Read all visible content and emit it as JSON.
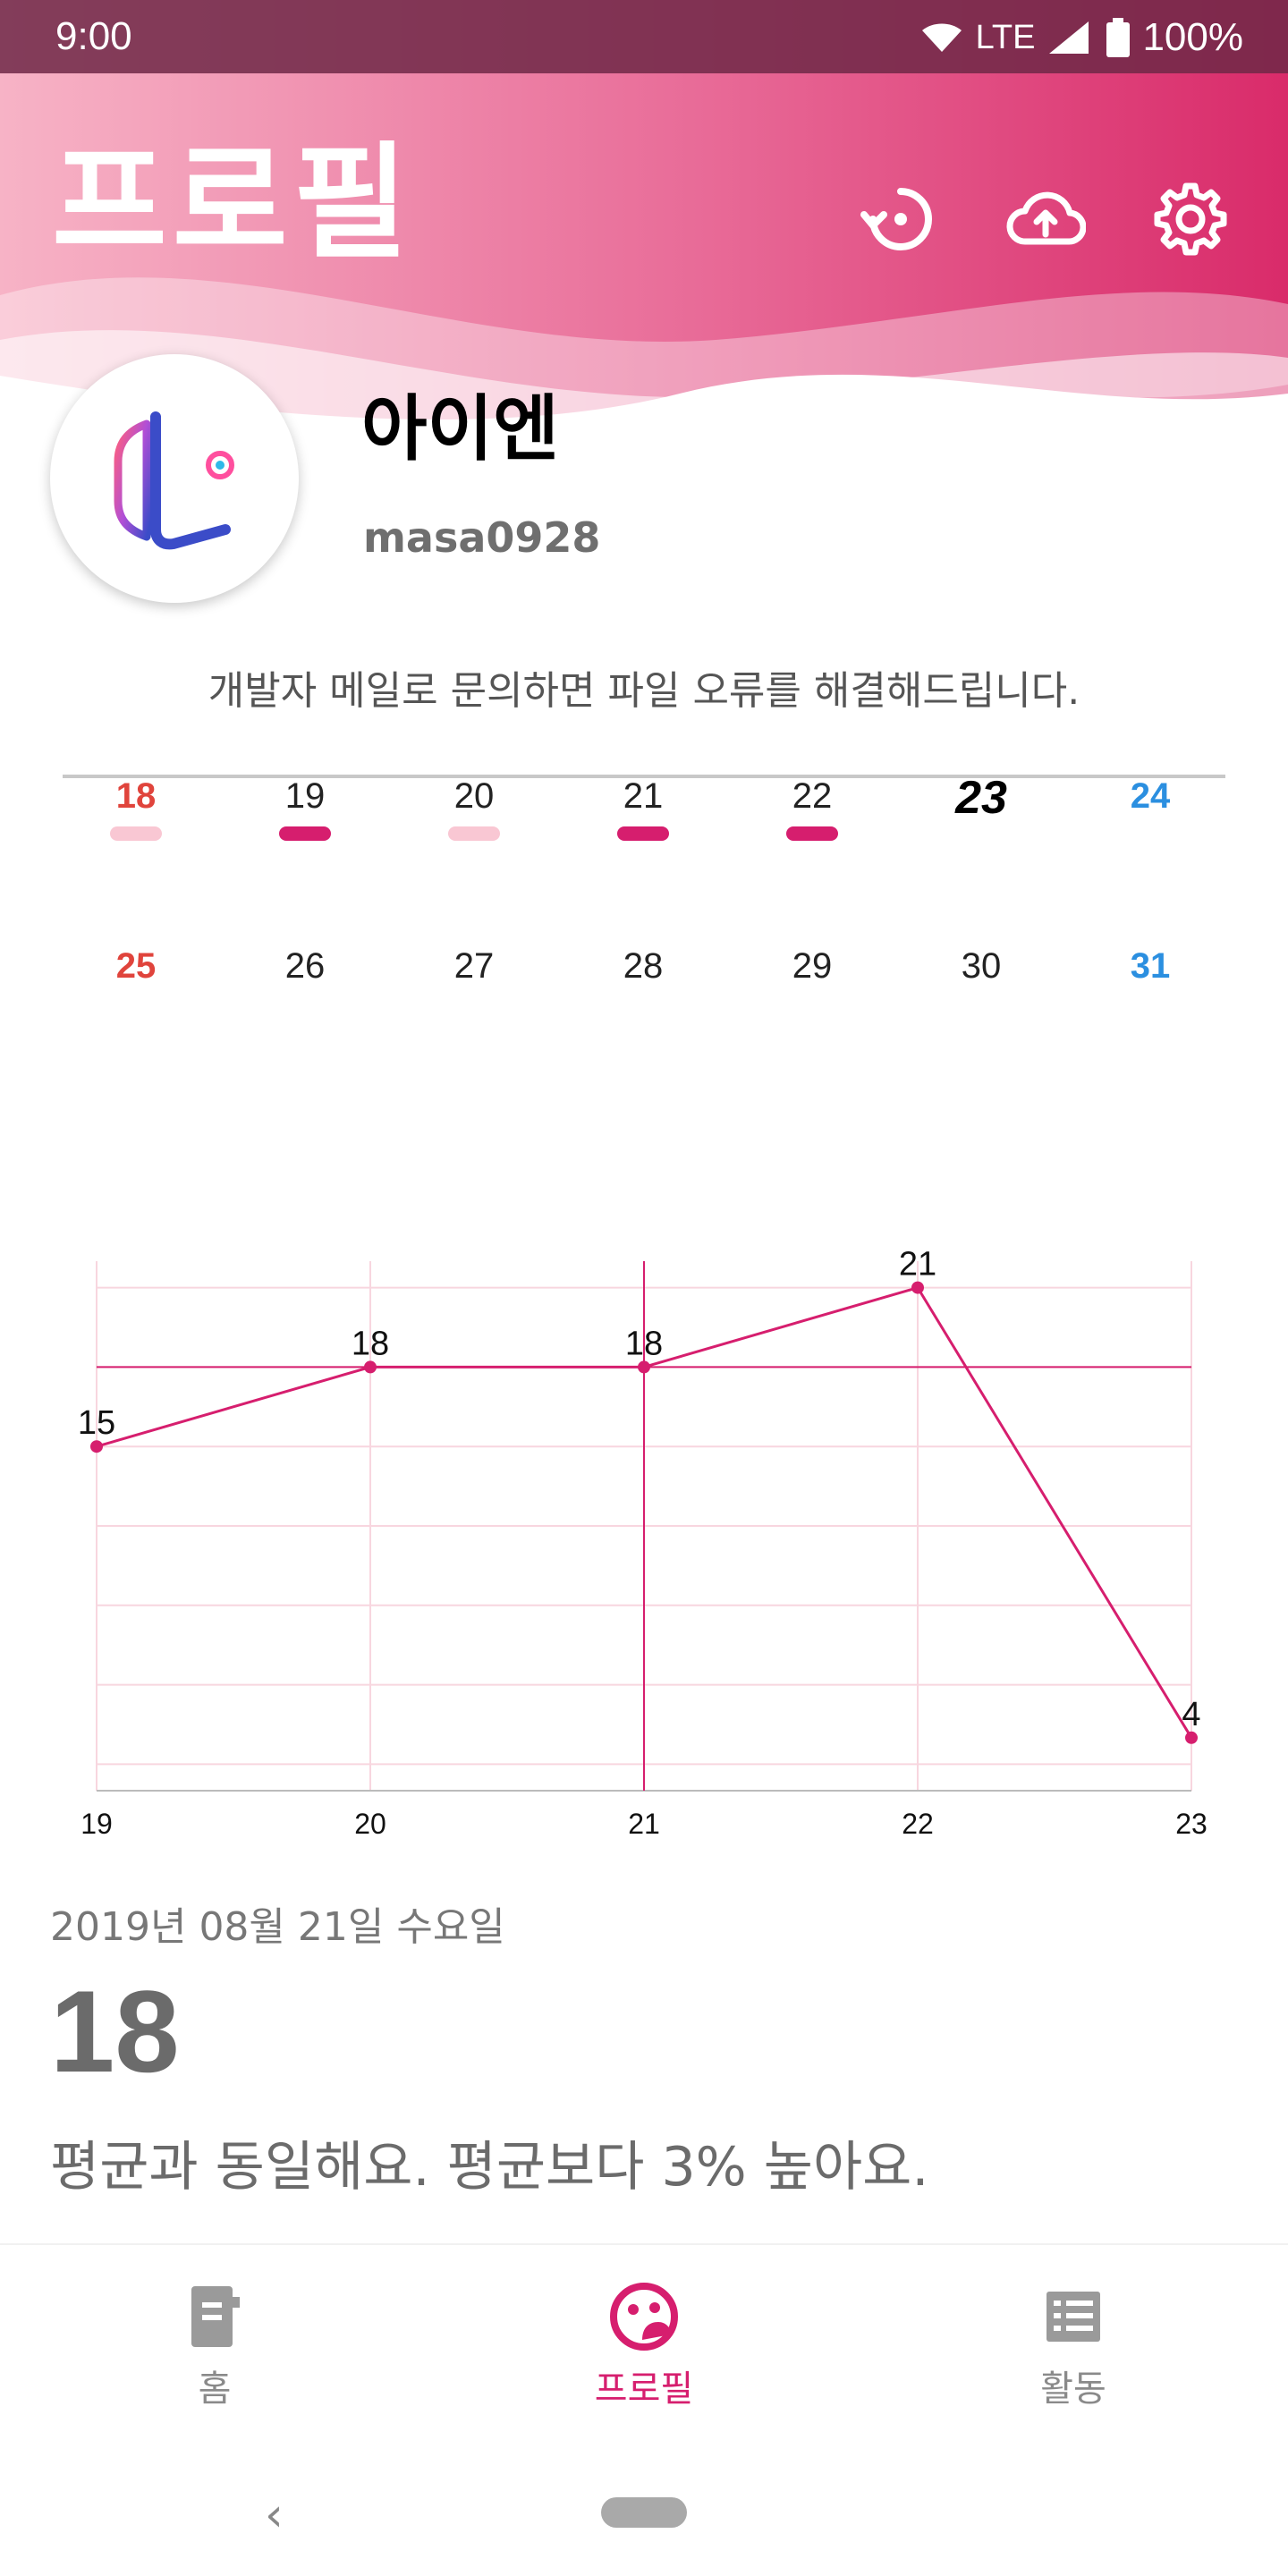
{
  "status_bar": {
    "time": "9:00",
    "network": "LTE",
    "battery": "100%"
  },
  "header": {
    "title": "프로필",
    "icons": [
      "restore-icon",
      "cloud-upload-icon",
      "gear-icon"
    ],
    "gradient_colors": [
      "#f7b3c6",
      "#e0457e",
      "#d92b6a"
    ]
  },
  "profile": {
    "name": "아이엔",
    "user_id": "masa0928",
    "notice": "개발자 메일로 문의하면 파일 오류를 해결해드립니다."
  },
  "calendar": {
    "rows": [
      [
        {
          "day": "18",
          "kind": "sun",
          "marker": "light"
        },
        {
          "day": "19",
          "kind": "",
          "marker": "dark"
        },
        {
          "day": "20",
          "kind": "",
          "marker": "light"
        },
        {
          "day": "21",
          "kind": "",
          "marker": "dark"
        },
        {
          "day": "22",
          "kind": "",
          "marker": "dark"
        },
        {
          "day": "23",
          "kind": "today",
          "marker": ""
        },
        {
          "day": "24",
          "kind": "sat",
          "marker": ""
        }
      ],
      [
        {
          "day": "25",
          "kind": "sun",
          "marker": ""
        },
        {
          "day": "26",
          "kind": "",
          "marker": ""
        },
        {
          "day": "27",
          "kind": "",
          "marker": ""
        },
        {
          "day": "28",
          "kind": "",
          "marker": ""
        },
        {
          "day": "29",
          "kind": "",
          "marker": ""
        },
        {
          "day": "30",
          "kind": "",
          "marker": ""
        },
        {
          "day": "31",
          "kind": "sat",
          "marker": ""
        }
      ]
    ],
    "colors": {
      "sun": "#e0443c",
      "sat": "#2b8fe0",
      "marker_dark": "#d61e6e",
      "marker_light": "#f9c7d3"
    }
  },
  "chart_data": {
    "type": "line",
    "x": [
      "19",
      "20",
      "21",
      "22",
      "23"
    ],
    "values": [
      15,
      18,
      18,
      21,
      4
    ],
    "data_labels": [
      "15",
      "18",
      "18",
      "21",
      "4"
    ],
    "ylim": [
      2,
      22
    ],
    "grid": true,
    "selected_index": 2,
    "line_color": "#d61e6e",
    "grid_color": "#f8d6df"
  },
  "detail": {
    "date": "2019년 08월 21일 수요일",
    "value": "18",
    "message": "평균과 동일해요. 평균보다 3% 높아요."
  },
  "bottom_nav": {
    "items": [
      {
        "label": "홈",
        "icon": "home-icon",
        "active": false
      },
      {
        "label": "프로필",
        "icon": "profile-face-icon",
        "active": true
      },
      {
        "label": "활동",
        "icon": "list-icon",
        "active": false
      }
    ],
    "active_color": "#d61e6e"
  },
  "system_nav": {
    "back": "‹"
  }
}
